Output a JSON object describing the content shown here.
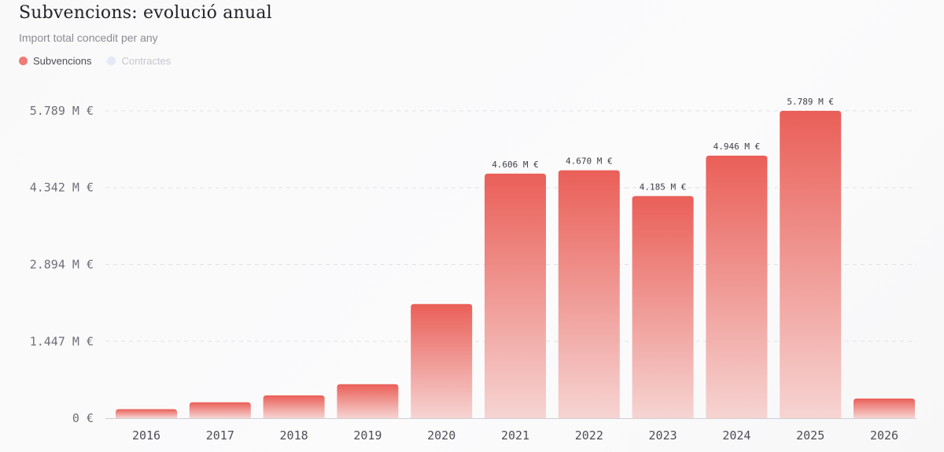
{
  "header": {
    "title": "Subvencions: evolució anual",
    "subtitle": "Import total concedit per any"
  },
  "legend": [
    {
      "label": "Subvencions",
      "color": "#ef7b76",
      "active": true
    },
    {
      "label": "Contractes",
      "color": "#e4e9f5",
      "active": false
    }
  ],
  "chart_data": {
    "type": "bar",
    "title": "Subvencions: evolució anual",
    "subtitle": "Import total concedit per any",
    "categories": [
      "2016",
      "2017",
      "2018",
      "2019",
      "2020",
      "2021",
      "2022",
      "2023",
      "2024",
      "2025",
      "2026"
    ],
    "series": [
      {
        "name": "Subvencions",
        "values": [
          0.17,
          0.3,
          0.43,
          0.64,
          2.15,
          4.606,
          4.67,
          4.185,
          4.946,
          5.789,
          0.37
        ],
        "labels": [
          "",
          "",
          "",
          "",
          "",
          "4.606 M €",
          "4.670 M €",
          "4.185 M €",
          "4.946 M €",
          "5.789 M €",
          ""
        ]
      }
    ],
    "unit": "M €",
    "yticks": [
      0,
      1.447,
      2.894,
      4.342,
      5.789
    ],
    "ytick_labels": [
      "0 €",
      "1.447 M €",
      "2.894 M €",
      "4.342 M €",
      "5.789 M €"
    ],
    "ylim": [
      0,
      5.789
    ],
    "grid": true,
    "legend_position": "top-left",
    "colors": {
      "bar_top": "#ea5f58",
      "bar_bottom": "#f6d4d2"
    }
  }
}
